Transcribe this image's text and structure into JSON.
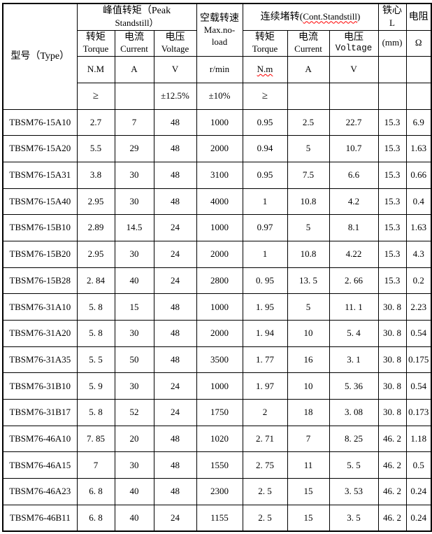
{
  "table": {
    "header": {
      "type_label": "型号（Type）",
      "peak_group_line1": "峰值转矩（Peak",
      "peak_group_line2": "Standstill）",
      "cont_group": {
        "prefix": "连续堵转(",
        "word": "Cont.Standstill",
        "suffix": ")"
      },
      "noload": {
        "zh": "空载转速",
        "en_line1": "Max.no-",
        "en_line2": "load",
        "unit": "r/min",
        "tolerance": "±10%"
      },
      "sub": {
        "torque_zh": "转矩",
        "torque_en": "Torque",
        "current_zh": "电流",
        "current_en": "Current",
        "voltage_zh": "电压",
        "voltage_en": "Voltage"
      },
      "core": {
        "zh": "铁心",
        "letter": "L",
        "unit": "(mm)"
      },
      "resistance": {
        "zh": "电阻",
        "unit": "Ω"
      },
      "units": {
        "peak_torque": "N.M",
        "peak_current": "A",
        "peak_voltage": "V",
        "cont_torque": "N.m",
        "cont_current": "A",
        "cont_voltage": "V"
      },
      "spec": {
        "peak_torque_min": "≥",
        "peak_voltage_tol": "±12.5%",
        "cont_torque_min": "≥"
      }
    },
    "rows": [
      {
        "model": "TBSM76-15A10",
        "values": [
          "2.7",
          "7",
          "48",
          "1000",
          "0.95",
          "2.5",
          "22.7",
          "15.3",
          "6.9"
        ]
      },
      {
        "model": "TBSM76-15A20",
        "values": [
          "5.5",
          "29",
          "48",
          "2000",
          "0.94",
          "5",
          "10.7",
          "15.3",
          "1.63"
        ]
      },
      {
        "model": "TBSM76-15A31",
        "values": [
          "3.8",
          "30",
          "48",
          "3100",
          "0.95",
          "7.5",
          "6.6",
          "15.3",
          "0.66"
        ]
      },
      {
        "model": "TBSM76-15A40",
        "values": [
          "2.95",
          "30",
          "48",
          "4000",
          "1",
          "10.8",
          "4.2",
          "15.3",
          "0.4"
        ]
      },
      {
        "model": "TBSM76-15B10",
        "values": [
          "2.89",
          "14.5",
          "24",
          "1000",
          "0.97",
          "5",
          "8.1",
          "15.3",
          "1.63"
        ]
      },
      {
        "model": "TBSM76-15B20",
        "values": [
          "2.95",
          "30",
          "24",
          "2000",
          "1",
          "10.8",
          "4.22",
          "15.3",
          "4.3"
        ]
      },
      {
        "model": "TBSM76-15B28",
        "values": [
          "2. 84",
          "40",
          "24",
          "2800",
          "0. 95",
          "13. 5",
          "2. 66",
          "15.3",
          "0.2"
        ]
      },
      {
        "model": "TBSM76-31A10",
        "values": [
          "5. 8",
          "15",
          "48",
          "1000",
          "1. 95",
          "5",
          "11. 1",
          "30. 8",
          "2.23"
        ]
      },
      {
        "model": "TBSM76-31A20",
        "values": [
          "5. 8",
          "30",
          "48",
          "2000",
          "1. 94",
          "10",
          "5. 4",
          "30. 8",
          "0.54"
        ]
      },
      {
        "model": "TBSM76-31A35",
        "values": [
          "5. 5",
          "50",
          "48",
          "3500",
          "1. 77",
          "16",
          "3. 1",
          "30. 8",
          "0.175"
        ]
      },
      {
        "model": "TBSM76-31B10",
        "values": [
          "5. 9",
          "30",
          "24",
          "1000",
          "1. 97",
          "10",
          "5. 36",
          "30. 8",
          "0.54"
        ]
      },
      {
        "model": "TBSM76-31B17",
        "values": [
          "5. 8",
          "52",
          "24",
          "1750",
          "2",
          "18",
          "3. 08",
          "30. 8",
          "0.173"
        ]
      },
      {
        "model": "TBSM76-46A10",
        "values": [
          "7. 85",
          "20",
          "48",
          "1020",
          "2. 71",
          "7",
          "8. 25",
          "46. 2",
          "1.18"
        ]
      },
      {
        "model": "TBSM76-46A15",
        "values": [
          "7",
          "30",
          "48",
          "1550",
          "2. 75",
          "11",
          "5. 5",
          "46. 2",
          "0.5"
        ]
      },
      {
        "model": "TBSM76-46A23",
        "values": [
          "6. 8",
          "40",
          "48",
          "2300",
          "2. 5",
          "15",
          "3. 53",
          "46. 2",
          "0.24"
        ]
      },
      {
        "model": "TBSM76-46B11",
        "values": [
          "6. 8",
          "40",
          "24",
          "1155",
          "2. 5",
          "15",
          "3. 5",
          "46. 2",
          "0.24"
        ]
      }
    ]
  }
}
